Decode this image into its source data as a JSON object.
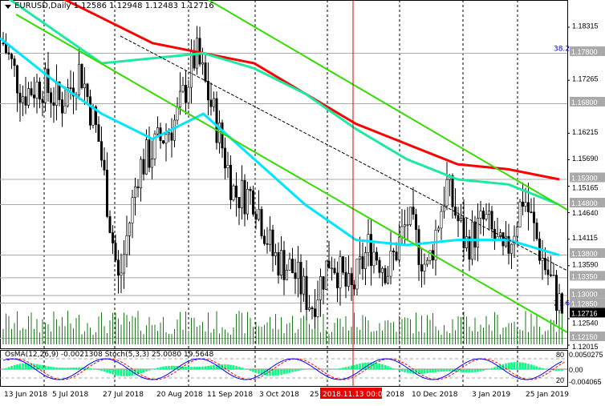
{
  "header": {
    "symbol_title": "EURUSD,Daily",
    "ohlc": "1.12586 1.12948 1.12483 1.12716"
  },
  "indicator": {
    "title": "OsMA(12,26,9) -0.0021308  Stoch(5,3,3) 25.0080 19.5648",
    "ticks": [
      "0.0050275",
      "80",
      "0.00",
      "20",
      "-0.004065"
    ]
  },
  "colors": {
    "bull": "#000000",
    "ma_fast": "#00e5ff",
    "ma_mid": "#1de9a0",
    "ma_slow": "#ff0000",
    "channel": "#33dd00",
    "osma": "#00ff80",
    "stoch_main": "#0000ff",
    "stoch_signal": "#ff0000"
  },
  "chart_data": {
    "type": "candlestick",
    "price_ticks": [
      "1.18315",
      "1.17265",
      "1.16215",
      "1.15690",
      "1.15165",
      "1.14640",
      "1.14115",
      "1.13590",
      "1.12540",
      "1.12015"
    ],
    "levels": [
      "1.17800",
      "1.16800",
      "1.15300",
      "1.14800",
      "1.13800",
      "1.13350",
      "1.13000",
      "1.12850",
      "1.12150"
    ],
    "fib_labels": [
      "38.2",
      "23.6"
    ],
    "current_price": "1.12716",
    "date_labels": [
      "13 Jun 2018",
      "5 Jul 2018",
      "27 Jul 2018",
      "20 Aug 2018",
      "11 Sep 2018",
      "3 Oct 2018",
      "25",
      "2018",
      "10 Dec 2018",
      "3 Jan 2019",
      "25 Jan 2019"
    ],
    "crosshair_date": "2018.11.13 00:00",
    "close_path": [
      1.18,
      1.17,
      1.172,
      1.168,
      1.175,
      1.16,
      1.132,
      1.155,
      1.16,
      1.165,
      1.178,
      1.165,
      1.15,
      1.15,
      1.138,
      1.135,
      1.128,
      1.138,
      1.13,
      1.14,
      1.135,
      1.145,
      1.135,
      1.152,
      1.14,
      1.145,
      1.137,
      1.15,
      1.137,
      1.127
    ],
    "ma_slow": [
      1.196,
      1.19,
      1.185,
      1.18,
      1.178,
      1.176,
      1.17,
      1.164,
      1.16,
      1.156,
      1.155,
      1.153
    ],
    "ma_mid": [
      1.19,
      1.183,
      1.176,
      1.177,
      1.178,
      1.175,
      1.17,
      1.163,
      1.157,
      1.153,
      1.152,
      1.148
    ],
    "ma_fast": [
      1.181,
      1.173,
      1.166,
      1.161,
      1.166,
      1.157,
      1.148,
      1.141,
      1.14,
      1.141,
      1.141,
      1.138
    ]
  }
}
